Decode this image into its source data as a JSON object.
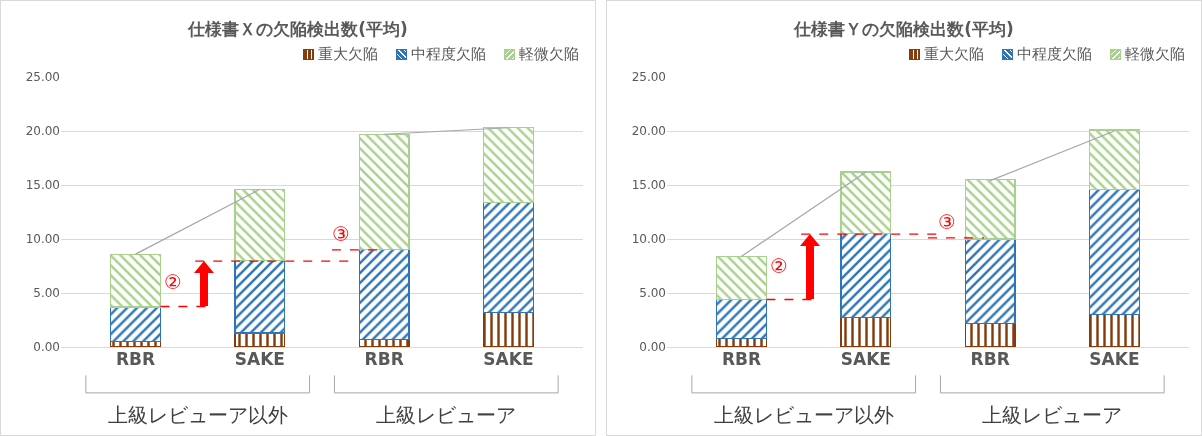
{
  "chart_data": [
    {
      "type": "bar",
      "title": "仕様書Ｘの欠陥検出数(平均)",
      "categories": [
        "RBR",
        "SAKE",
        "RBR",
        "SAKE"
      ],
      "stacked": true,
      "legend": "top right",
      "grid": "y",
      "ylim": [
        0,
        25
      ],
      "yticks": [
        {
          "value": 0,
          "label": "0.00"
        },
        {
          "value": 5,
          "label": "5.00"
        },
        {
          "value": 10,
          "label": "10.00"
        },
        {
          "value": 15,
          "label": "15.00"
        },
        {
          "value": 20,
          "label": "20.00"
        },
        {
          "value": 25,
          "label": "25.00"
        }
      ],
      "series": [
        {
          "name": "重大欠陥",
          "color": "#843c0c",
          "values": [
            0.5,
            1.3,
            0.7,
            3.2
          ]
        },
        {
          "name": "中程度欠陥",
          "color": "#2e75b6",
          "values": [
            3.2,
            6.7,
            8.3,
            10.2
          ]
        },
        {
          "name": "軽微欠陥",
          "color": "#a9d18e",
          "values": [
            4.9,
            6.6,
            10.7,
            6.9
          ]
        },
        {
          "type": "line",
          "color": "#a6a6a6",
          "values": [
            8.6,
            14.6,
            null,
            null
          ]
        },
        {
          "type": "line",
          "color": "#a6a6a6",
          "values": [
            null,
            null,
            19.7,
            20.3
          ]
        }
      ],
      "ref_lines": [
        {
          "axis": "y",
          "value": 3.75,
          "color": "#ff0000",
          "line_style": "dashed"
        },
        {
          "axis": "y",
          "value": 7.95,
          "color": "#ff0000",
          "line_style": "dashed"
        },
        {
          "axis": "y",
          "value": 9.0,
          "color": "#ff0000",
          "line_style": "dashed"
        }
      ],
      "annotations": [
        "上級レビューア以外",
        "上級レビューア",
        "②",
        "③"
      ]
    },
    {
      "type": "bar",
      "title": "仕様書Ｙの欠陥検出数(平均)",
      "categories": [
        "RBR",
        "SAKE",
        "RBR",
        "SAKE"
      ],
      "stacked": true,
      "legend": "top right",
      "grid": "y",
      "ylim": [
        0,
        25
      ],
      "yticks": [
        {
          "value": 0,
          "label": "0.00"
        },
        {
          "value": 5,
          "label": "5.00"
        },
        {
          "value": 10,
          "label": "10.00"
        },
        {
          "value": 15,
          "label": "15.00"
        },
        {
          "value": 20,
          "label": "20.00"
        },
        {
          "value": 25,
          "label": "25.00"
        }
      ],
      "series": [
        {
          "name": "重大欠陥",
          "color": "#843c0c",
          "values": [
            0.8,
            2.7,
            2.2,
            3.0
          ]
        },
        {
          "name": "中程度欠陥",
          "color": "#2e75b6",
          "values": [
            3.6,
            7.8,
            7.8,
            11.6
          ]
        },
        {
          "name": "軽微欠陥",
          "color": "#a9d18e",
          "values": [
            4.0,
            5.7,
            5.5,
            5.5
          ]
        },
        {
          "type": "line",
          "color": "#a6a6a6",
          "values": [
            8.4,
            16.2,
            null,
            null
          ]
        },
        {
          "type": "line",
          "color": "#a6a6a6",
          "values": [
            null,
            null,
            15.4,
            20.0
          ]
        }
      ],
      "ref_lines": [
        {
          "axis": "y",
          "value": 4.4,
          "color": "#ff0000",
          "line_style": "dashed"
        },
        {
          "axis": "y",
          "value": 10.45,
          "color": "#ff0000",
          "line_style": "dashed"
        },
        {
          "axis": "y",
          "value": 10.1,
          "color": "#ff0000",
          "line_style": "dashed"
        }
      ],
      "annotations": [
        "上級レビューア以外",
        "上級レビューア",
        "②",
        "③"
      ]
    }
  ]
}
